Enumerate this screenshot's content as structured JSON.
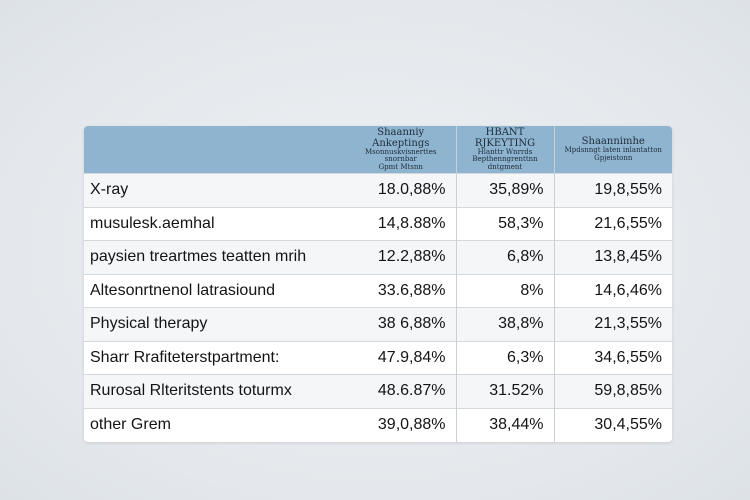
{
  "chart_data": {
    "type": "table",
    "columns": [
      {
        "lines": [
          "Shaanniy Ankeptings",
          "Msonnuskvisnerttes snornbar",
          "Gpmt Mtsnn"
        ]
      },
      {
        "lines": [
          "HBANT RJKEYTING",
          "Hlanttr Wnrrds",
          "Bepthenngrenttnn dntgment"
        ]
      },
      {
        "lines": [
          "Shaannimhe",
          "Mpdsnngt laten inlantatton",
          "Gpjeistonn"
        ]
      }
    ],
    "rows": [
      {
        "label": "X-ray",
        "values": [
          "18.0,88%",
          "35,89%",
          "19,8,55%"
        ]
      },
      {
        "label": "musulesk.aemhal",
        "values": [
          "14,8.88%",
          "58,3%",
          "21,6,55%"
        ]
      },
      {
        "label": "paysien treartmes teatten mrih",
        "values": [
          "12.2,88%",
          "6,8%",
          "13,8,45%"
        ]
      },
      {
        "label": "Altesonrtnenol latrasiound",
        "values": [
          "33.6,88%",
          "8%",
          "14,6,46%"
        ]
      },
      {
        "label": "Physical therapy",
        "values": [
          "38 6,88%",
          "38,8%",
          "21,3,55%"
        ]
      },
      {
        "label": "Sharr Rrafiteterstpartment:",
        "values": [
          "47.9,84%",
          "6,3%",
          "34,6,55%"
        ]
      },
      {
        "label": "Rurosal Rlteritstents toturmx",
        "values": [
          "48.6.87%",
          "31.52%",
          "59,8,85%"
        ]
      },
      {
        "label": "other Grem",
        "values": [
          "39,0,88%",
          "38,44%",
          "30,4,55%"
        ]
      }
    ]
  }
}
